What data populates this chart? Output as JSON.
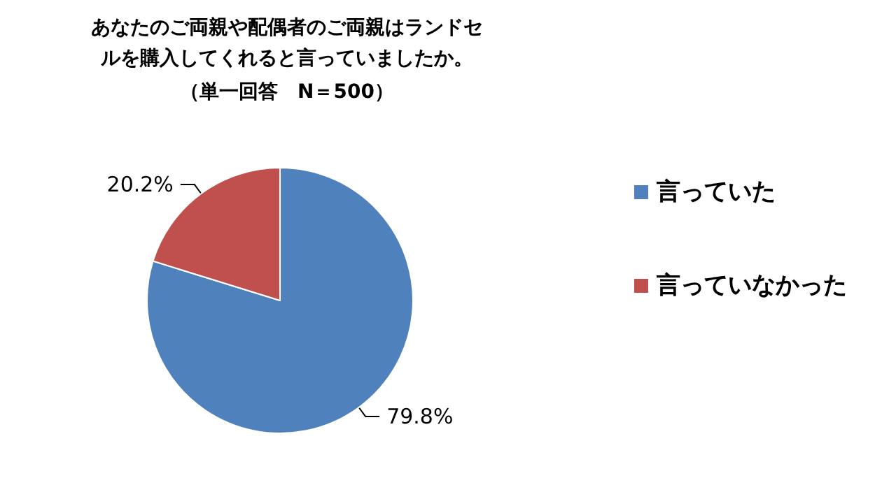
{
  "chart_data": {
    "type": "pie",
    "title": "あなたのご両親や配偶者のご両親はランドセルを購入してくれると言っていましたか。",
    "subtitle": "（単一回答　N＝500）",
    "categories": [
      "言っていた",
      "言っていなかった"
    ],
    "values": [
      79.8,
      20.2
    ],
    "value_labels": [
      "79.8%",
      "20.2%"
    ],
    "colors": [
      "#4f81bd",
      "#c0504d"
    ],
    "legend": "right"
  }
}
